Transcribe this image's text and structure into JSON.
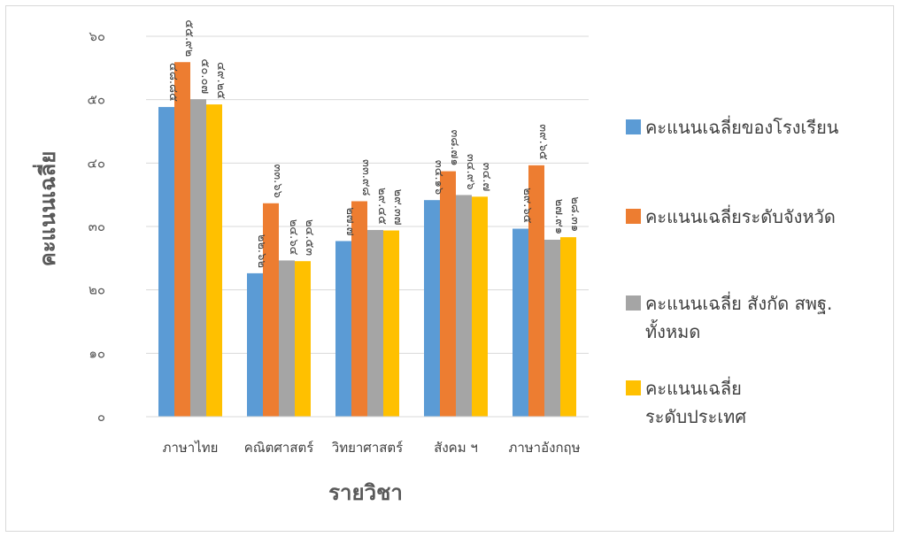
{
  "chart_data": {
    "type": "bar",
    "xlabel": "รายวิชา",
    "ylabel": "คะแนนเฉลี่ย",
    "categories": [
      "ภาษาไทย",
      "คณิตศาสตร์",
      "วิทยาศาสตร์",
      "สังคม ฯ",
      "ภาษาอังกฤษ"
    ],
    "ylim": [
      0,
      60
    ],
    "yticks": [
      0,
      10,
      20,
      30,
      40,
      50,
      60
    ],
    "ytick_labels": [
      "๐",
      "๑๐",
      "๒๐",
      "๓๐",
      "๔๐",
      "๕๐",
      "๖๐"
    ],
    "grid": true,
    "legend_position": "right",
    "series": [
      {
        "name": "คะแนนเฉลี่ยของโรงเรียน",
        "color": "#5B9BD5",
        "values": [
          48.85,
          22.62,
          27.7,
          34.16,
          29.65
        ],
        "labels": [
          "๔๘.๘๕",
          "๒๒.๖๒",
          "๒๗.๗",
          "๓๔.๑๖",
          "๒๙.๖๕"
        ]
      },
      {
        "name": "คะแนนเฉลี่ยระดับจังหวัด",
        "color": "#ED7D31",
        "values": [
          55.92,
          33.66,
          33.98,
          38.71,
          39.65
        ],
        "labels": [
          "๕๕.๙๒",
          "๓๓.๖๖",
          "๓๓.๙๘",
          "๓๘.๗๑",
          "๓๙.๖๕"
        ]
      },
      {
        "name": "คะแนนเฉลี่ย สังกัด สพฐ. ทั้งหมด",
        "color": "#A5A5A5",
        "values": [
          50.07,
          24.64,
          29.45,
          34.96,
          27.91
        ],
        "labels": [
          "๕๐.๐๗",
          "๒๔.๖๔",
          "๒๙.๔๕",
          "๓๔.๙๖",
          "๒๗.๙๑"
        ]
      },
      {
        "name": "คะแนนเฉลี่ย ระดับประเทศ",
        "color": "#FFC000",
        "values": [
          49.25,
          24.53,
          29.37,
          34.7,
          28.31
        ],
        "labels": [
          "๔๙.๒๕",
          "๒๔.๕๓",
          "๒๙.๓๗",
          "๓๔.๗",
          "๒๘.๓๑"
        ]
      }
    ]
  }
}
